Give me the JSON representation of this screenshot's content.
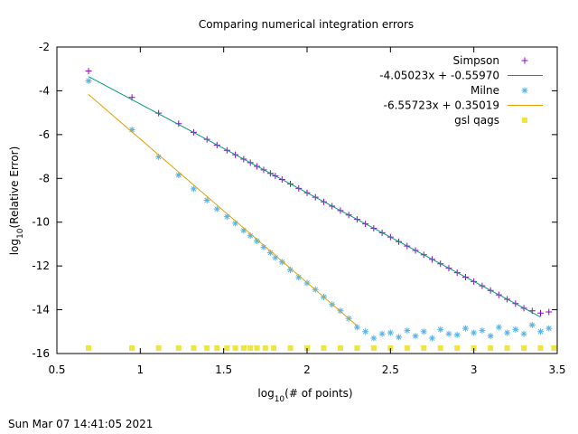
{
  "footer_timestamp": "Sun Mar 07 14:41:05 2021",
  "chart_data": {
    "type": "scatter",
    "title": "Comparing numerical integration errors",
    "xlabel": "log10(# of points)",
    "ylabel": "log10(Relative Error)",
    "xlim": [
      0.5,
      3.5
    ],
    "ylim": [
      -16,
      -2
    ],
    "x_ticks": [
      "0.5",
      "1",
      "1.5",
      "2",
      "2.5",
      "3",
      "3.5"
    ],
    "y_ticks": [
      "-2",
      "-4",
      "-6",
      "-8",
      "-10",
      "-12",
      "-14",
      "-16"
    ],
    "grid": false,
    "legend_position": "top-right",
    "series": [
      {
        "name": "Simpson",
        "marker": "plus",
        "color": "#9400d3",
        "x": [
          0.69,
          0.95,
          1.11,
          1.23,
          1.32,
          1.4,
          1.46,
          1.52,
          1.57,
          1.62,
          1.66,
          1.7,
          1.74,
          1.78,
          1.81,
          1.85,
          1.9,
          1.95,
          2.0,
          2.05,
          2.1,
          2.15,
          2.2,
          2.25,
          2.3,
          2.35,
          2.4,
          2.45,
          2.5,
          2.55,
          2.6,
          2.65,
          2.7,
          2.75,
          2.8,
          2.85,
          2.9,
          2.95,
          3.0,
          3.05,
          3.1,
          3.15,
          3.2,
          3.25,
          3.3,
          3.35,
          3.4,
          3.45
        ],
        "y": [
          -3.1,
          -4.3,
          -5.02,
          -5.5,
          -5.9,
          -6.22,
          -6.48,
          -6.72,
          -6.92,
          -7.12,
          -7.28,
          -7.45,
          -7.61,
          -7.77,
          -7.89,
          -8.05,
          -8.25,
          -8.46,
          -8.66,
          -8.86,
          -9.07,
          -9.27,
          -9.47,
          -9.67,
          -9.87,
          -10.08,
          -10.28,
          -10.48,
          -10.68,
          -10.89,
          -11.09,
          -11.29,
          -11.49,
          -11.7,
          -11.9,
          -12.1,
          -12.31,
          -12.51,
          -12.71,
          -12.91,
          -13.12,
          -13.32,
          -13.52,
          -13.72,
          -13.93,
          -14.05,
          -14.15,
          -14.1
        ]
      },
      {
        "name": "-4.05023x + -0.55970",
        "type": "line",
        "color": "#009e73",
        "x": [
          0.69,
          3.4
        ],
        "y": [
          -3.35,
          -14.33
        ]
      },
      {
        "name": "Milne",
        "marker": "asterisk",
        "color": "#56b4e9",
        "x": [
          0.69,
          0.95,
          1.11,
          1.23,
          1.32,
          1.4,
          1.46,
          1.52,
          1.57,
          1.62,
          1.66,
          1.7,
          1.74,
          1.78,
          1.81,
          1.85,
          1.9,
          1.95,
          2.0,
          2.05,
          2.1,
          2.15,
          2.2,
          2.25,
          2.3,
          2.35,
          2.4,
          2.45,
          2.5,
          2.55,
          2.6,
          2.65,
          2.7,
          2.75,
          2.8,
          2.85,
          2.9,
          2.95,
          3.0,
          3.05,
          3.1,
          3.15,
          3.2,
          3.25,
          3.3,
          3.35,
          3.4,
          3.45
        ],
        "y": [
          -3.55,
          -5.78,
          -7.02,
          -7.85,
          -8.48,
          -9.0,
          -9.4,
          -9.75,
          -10.05,
          -10.38,
          -10.62,
          -10.86,
          -11.14,
          -11.4,
          -11.62,
          -11.82,
          -12.18,
          -12.52,
          -12.78,
          -13.08,
          -13.42,
          -13.76,
          -14.05,
          -14.4,
          -14.8,
          -15.0,
          -15.3,
          -15.1,
          -15.05,
          -15.25,
          -14.95,
          -15.2,
          -15.0,
          -15.3,
          -14.9,
          -15.1,
          -15.15,
          -14.85,
          -15.05,
          -14.95,
          -15.2,
          -14.8,
          -15.05,
          -14.9,
          -15.1,
          -14.7,
          -15.0,
          -14.85
        ]
      },
      {
        "name": "-6.55723x + 0.35019",
        "type": "line",
        "color": "#e69f00",
        "x": [
          0.69,
          2.3
        ],
        "y": [
          -4.17,
          -14.73
        ]
      },
      {
        "name": "gsl qags",
        "marker": "square",
        "color": "#f0e442",
        "x": [
          0.69,
          0.95,
          1.11,
          1.23,
          1.32,
          1.4,
          1.46,
          1.52,
          1.57,
          1.62,
          1.66,
          1.7,
          1.75,
          1.8,
          1.9,
          2.0,
          2.1,
          2.2,
          2.3,
          2.4,
          2.5,
          2.6,
          2.7,
          2.8,
          2.9,
          3.0,
          3.1,
          3.2,
          3.3,
          3.4,
          3.48
        ],
        "y": [
          -15.75,
          -15.75,
          -15.75,
          -15.75,
          -15.75,
          -15.75,
          -15.75,
          -15.75,
          -15.75,
          -15.75,
          -15.75,
          -15.75,
          -15.75,
          -15.75,
          -15.75,
          -15.75,
          -15.75,
          -15.75,
          -15.75,
          -15.75,
          -15.75,
          -15.75,
          -15.75,
          -15.75,
          -15.75,
          -15.75,
          -15.75,
          -15.75,
          -15.75,
          -15.75,
          -15.75
        ]
      }
    ]
  }
}
